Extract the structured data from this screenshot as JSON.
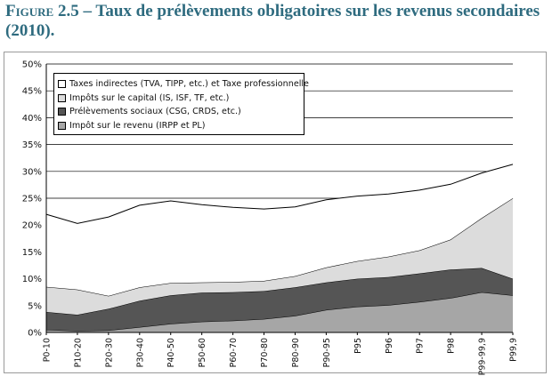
{
  "header": {
    "figure_label": "Figure 2.5",
    "figure_title": "– Taux de prélèvements obligatoires sur les revenus secondaires (2010)."
  },
  "chart_data": {
    "type": "area",
    "stacked": true,
    "categories": [
      "P0-10",
      "P10-20",
      "P20-30",
      "P30-40",
      "P40-50",
      "P50-60",
      "P60-70",
      "P70-80",
      "P80-90",
      "P90-95",
      "P95",
      "P96",
      "P97",
      "P98",
      "P99-99,9",
      "P99,9"
    ],
    "ylim": [
      0,
      0.5
    ],
    "yticks": [
      "0%",
      "5%",
      "10%",
      "15%",
      "20%",
      "25%",
      "30%",
      "35%",
      "40%",
      "45%",
      "50%"
    ],
    "grid": true,
    "legend_position": "top-left",
    "series": [
      {
        "name": "Impôt sur le revenu (IRPP et PL)",
        "color": "#a6a6a6",
        "values": [
          0.005,
          0.003,
          0.004,
          0.01,
          0.016,
          0.02,
          0.022,
          0.025,
          0.031,
          0.042,
          0.048,
          0.051,
          0.057,
          0.064,
          0.075,
          0.069
        ]
      },
      {
        "name": "Prélèvements sociaux (CSG, CRDS, etc.)",
        "color": "#555555",
        "values": [
          0.033,
          0.03,
          0.04,
          0.049,
          0.053,
          0.054,
          0.053,
          0.052,
          0.053,
          0.051,
          0.052,
          0.052,
          0.053,
          0.053,
          0.045,
          0.031
        ]
      },
      {
        "name": "Impôts sur le capital (IS, ISF, TF, etc.)",
        "color": "#dcdcdc",
        "values": [
          0.047,
          0.047,
          0.024,
          0.025,
          0.023,
          0.019,
          0.019,
          0.019,
          0.021,
          0.028,
          0.033,
          0.038,
          0.043,
          0.056,
          0.093,
          0.15
        ]
      },
      {
        "name": "Taxes indirectes (TVA, TIPP, etc.) et Taxe professionnelle",
        "color": "#ffffff",
        "values": [
          0.135,
          0.123,
          0.147,
          0.153,
          0.153,
          0.145,
          0.139,
          0.134,
          0.129,
          0.126,
          0.121,
          0.117,
          0.112,
          0.103,
          0.084,
          0.063
        ]
      }
    ]
  }
}
